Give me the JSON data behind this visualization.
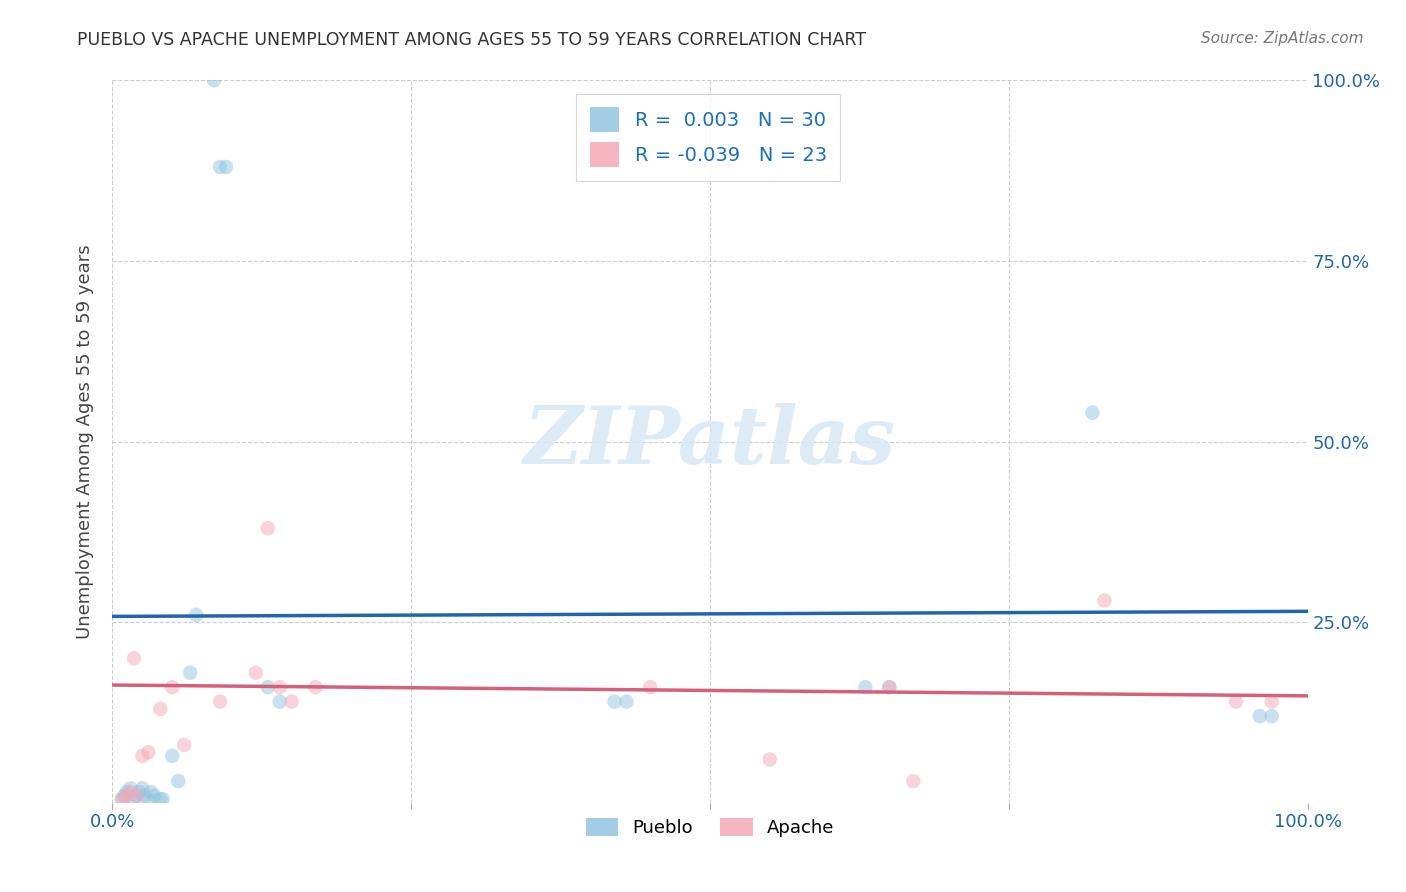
{
  "title": "PUEBLO VS APACHE UNEMPLOYMENT AMONG AGES 55 TO 59 YEARS CORRELATION CHART",
  "source": "Source: ZipAtlas.com",
  "ylabel": "Unemployment Among Ages 55 to 59 years",
  "pueblo_R": 0.003,
  "pueblo_N": 30,
  "apache_R": -0.039,
  "apache_N": 23,
  "pueblo_color": "#92c5de",
  "apache_color": "#f4a9b8",
  "pueblo_line_color": "#2166ac",
  "apache_line_color": "#d6607a",
  "watermark_color": "#d8e8f5",
  "xlim": [
    0.0,
    1.0
  ],
  "ylim": [
    0.0,
    1.0
  ],
  "pueblo_x": [
    0.008,
    0.01,
    0.012,
    0.015,
    0.018,
    0.02,
    0.022,
    0.025,
    0.027,
    0.03,
    0.032,
    0.035,
    0.04,
    0.042,
    0.05,
    0.055,
    0.065,
    0.07,
    0.085,
    0.09,
    0.095,
    0.13,
    0.14,
    0.42,
    0.43,
    0.63,
    0.65,
    0.82,
    0.96,
    0.97
  ],
  "pueblo_y": [
    0.005,
    0.01,
    0.015,
    0.02,
    0.005,
    0.01,
    0.015,
    0.02,
    0.01,
    0.005,
    0.015,
    0.01,
    0.005,
    0.005,
    0.065,
    0.03,
    0.18,
    0.26,
    1.0,
    0.88,
    0.88,
    0.16,
    0.14,
    0.14,
    0.14,
    0.16,
    0.16,
    0.54,
    0.12,
    0.12
  ],
  "apache_x": [
    0.008,
    0.012,
    0.015,
    0.018,
    0.02,
    0.025,
    0.03,
    0.04,
    0.05,
    0.06,
    0.09,
    0.12,
    0.13,
    0.14,
    0.15,
    0.17,
    0.45,
    0.55,
    0.65,
    0.67,
    0.83,
    0.94,
    0.97
  ],
  "apache_y": [
    0.005,
    0.01,
    0.015,
    0.2,
    0.01,
    0.065,
    0.07,
    0.13,
    0.16,
    0.08,
    0.14,
    0.18,
    0.38,
    0.16,
    0.14,
    0.16,
    0.16,
    0.06,
    0.16,
    0.03,
    0.28,
    0.14,
    0.14
  ],
  "pueblo_line_y0": 0.258,
  "pueblo_line_y1": 0.265,
  "apache_line_y0": 0.163,
  "apache_line_y1": 0.148,
  "marker_size": 110,
  "alpha": 0.5
}
